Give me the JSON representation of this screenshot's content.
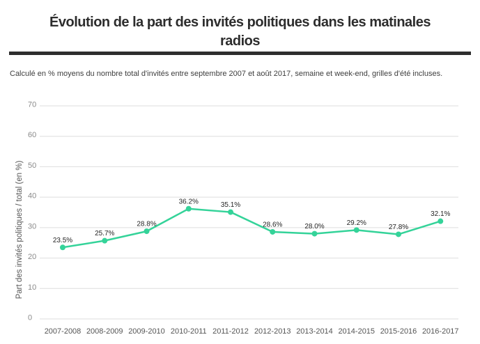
{
  "page": {
    "title_line1": "Évolution de la part des invités politiques dans les matinales",
    "title_line2": "radios",
    "subtitle": "Calculé en % moyens du nombre total d'invités entre septembre 2007 et août 2017, semaine et week-end, grilles d'été incluses."
  },
  "colors": {
    "line": "#34d399",
    "marker": "#34d399",
    "grid": "#dedede",
    "tick_text": "#8a8a8a",
    "x_tick_text": "#555555",
    "axis_title_text": "#555555",
    "point_label_text": "#262626",
    "title_text": "#2d2d2d",
    "divider": "#2e2e2e"
  },
  "chart_data": {
    "type": "line",
    "title": "Évolution de la part des invités politiques dans les matinales radios",
    "subtitle": "Calculé en % moyens du nombre total d'invités entre septembre 2007 et août 2017, semaine et week-end, grilles d'été incluses.",
    "categories": [
      "2007-2008",
      "2008-2009",
      "2009-2010",
      "2010-2011",
      "2011-2012",
      "2012-2013",
      "2013-2014",
      "2014-2015",
      "2015-2016",
      "2016-2017"
    ],
    "series": [
      {
        "name": "Part des invités politiques",
        "values": [
          23.5,
          25.7,
          28.8,
          36.2,
          35.1,
          28.6,
          28.0,
          29.2,
          27.8,
          32.1
        ]
      }
    ],
    "point_labels": [
      "23.5%",
      "25.7%",
      "28.8%",
      "36.2%",
      "35.1%",
      "28.6%",
      "28.0%",
      "29.2%",
      "27.8%",
      "32.1%"
    ],
    "xlabel": "",
    "ylabel": "Part des invités politiques / total (en %)",
    "ylim": [
      0,
      70
    ],
    "yticks": [
      0,
      10,
      20,
      30,
      40,
      50,
      60,
      70
    ],
    "grid": true,
    "legend_position": "none"
  }
}
